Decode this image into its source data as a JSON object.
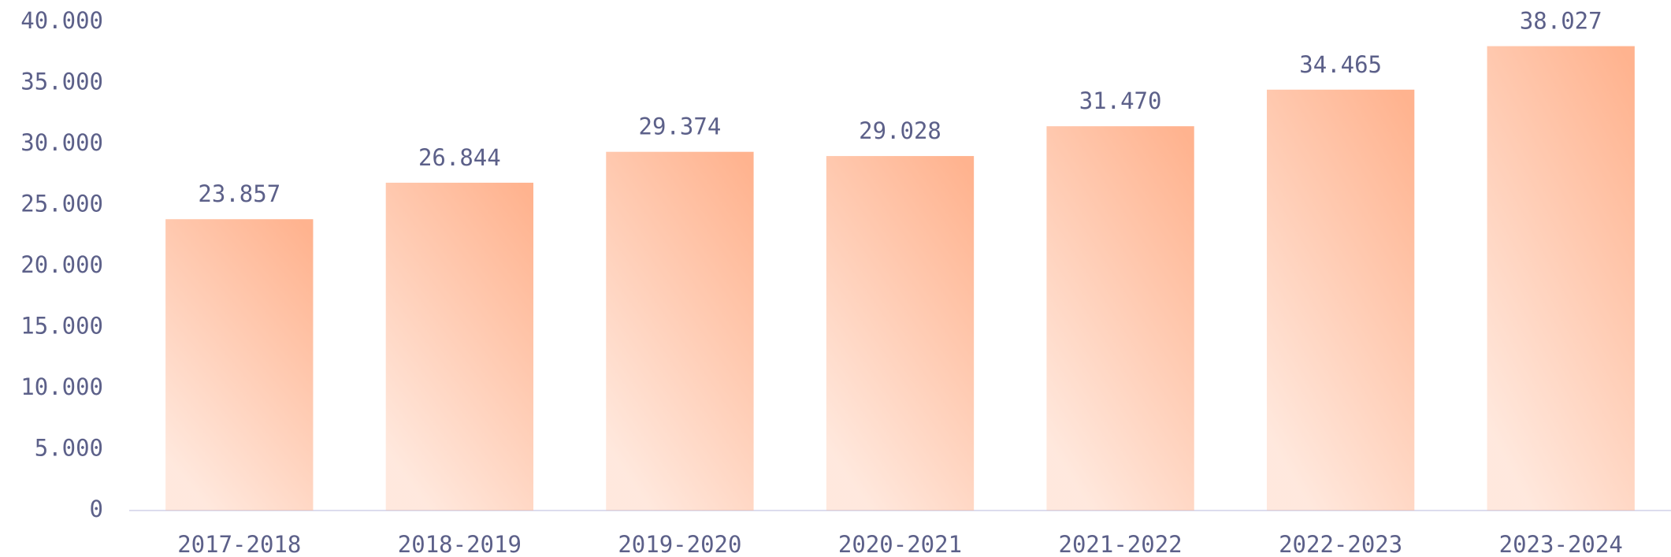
{
  "chart_data": {
    "type": "bar",
    "categories": [
      "2017-2018",
      "2018-2019",
      "2019-2020",
      "2020-2021",
      "2021-2022",
      "2022-2023",
      "2023-2024"
    ],
    "values": [
      23857,
      26844,
      29374,
      29028,
      31470,
      34465,
      38027
    ],
    "value_labels": [
      "23.857",
      "26.844",
      "29.374",
      "29.028",
      "31.470",
      "34.465",
      "38.027"
    ],
    "color": "#ffb38f",
    "ylim": [
      0,
      40000
    ],
    "yticks": [
      0,
      {
        "value": 5000,
        "label": "5.000"
      },
      {
        "value": 10000,
        "label": "10.000"
      },
      {
        "value": 15000,
        "label": "15.000"
      },
      {
        "value": 20000,
        "label": "20.000"
      },
      {
        "value": 25000,
        "label": "25.000"
      },
      {
        "value": 30000,
        "label": "30.000"
      },
      {
        "value": 35000,
        "label": "35.000"
      },
      {
        "value": 40000,
        "label": "40.000"
      }
    ],
    "grid": false
  }
}
